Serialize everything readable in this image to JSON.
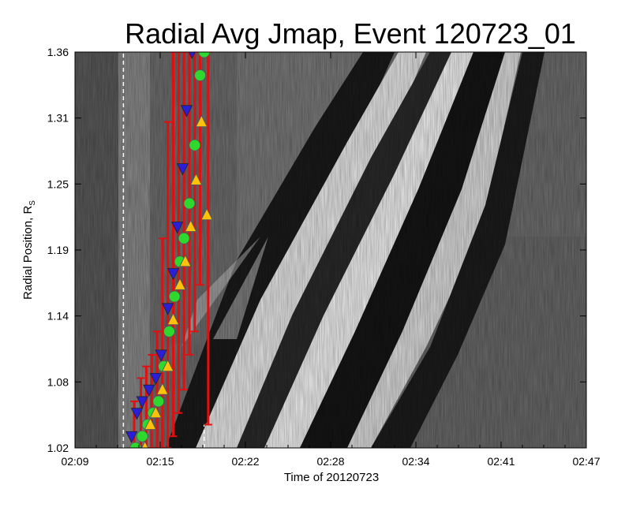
{
  "chart_data": {
    "type": "scatter",
    "title": "Radial Avg Jmap, Event 120723_01",
    "xlabel": "Time of 20120723",
    "ylabel": "Radial Position, R",
    "ylabel_sub": "S",
    "x_ticks": [
      "02:09",
      "02:15",
      "02:22",
      "02:28",
      "02:34",
      "02:41",
      "02:47"
    ],
    "y_ticks": [
      "1.02",
      "1.08",
      "1.14",
      "1.19",
      "1.25",
      "1.31",
      "1.36"
    ],
    "xlim": [
      0,
      38
    ],
    "ylim": [
      1.02,
      1.36
    ],
    "background": "grayscale intensity j-map image",
    "vertical_markers": [
      {
        "x": 3.6,
        "style": "dashed",
        "color": "#ffffff"
      },
      {
        "x": 9.6,
        "style": "dashed",
        "color": "#ffffff",
        "ymax": 1.04
      }
    ],
    "colors": {
      "error_bar": "#e01010",
      "triangle_down": "#2a1fd6",
      "circle": "#2ed82e",
      "triangle_up": "#ffc20a"
    },
    "series": [
      {
        "marker": "triangle-down",
        "color": "#2a1fd6",
        "points": [
          [
            4.2,
            1.03
          ],
          [
            4.6,
            1.05
          ],
          [
            5.0,
            1.06
          ],
          [
            5.5,
            1.07
          ],
          [
            6.0,
            1.08
          ],
          [
            6.4,
            1.1
          ],
          [
            6.9,
            1.14
          ],
          [
            7.3,
            1.17
          ],
          [
            7.6,
            1.21
          ],
          [
            8.0,
            1.26
          ],
          [
            8.3,
            1.31
          ],
          [
            8.7,
            1.36
          ]
        ]
      },
      {
        "marker": "circle",
        "color": "#2ed82e",
        "points": [
          [
            4.5,
            1.02
          ],
          [
            5.0,
            1.03
          ],
          [
            5.4,
            1.04
          ],
          [
            5.8,
            1.05
          ],
          [
            6.2,
            1.06
          ],
          [
            6.6,
            1.09
          ],
          [
            7.0,
            1.12
          ],
          [
            7.4,
            1.15
          ],
          [
            7.8,
            1.18
          ],
          [
            8.1,
            1.2
          ],
          [
            8.5,
            1.23
          ],
          [
            8.9,
            1.28
          ],
          [
            9.3,
            1.34
          ],
          [
            9.6,
            1.36
          ]
        ]
      },
      {
        "marker": "triangle-up",
        "color": "#ffc20a",
        "points": [
          [
            5.2,
            1.02
          ],
          [
            5.6,
            1.04
          ],
          [
            6.0,
            1.05
          ],
          [
            6.5,
            1.07
          ],
          [
            6.9,
            1.09
          ],
          [
            7.3,
            1.13
          ],
          [
            7.8,
            1.16
          ],
          [
            8.2,
            1.18
          ],
          [
            8.6,
            1.21
          ],
          [
            9.0,
            1.25
          ],
          [
            9.4,
            1.3
          ],
          [
            9.8,
            1.22
          ]
        ]
      }
    ],
    "error_bars": [
      {
        "x": 4.4,
        "lo": 1.02,
        "hi": 1.06
      },
      {
        "x": 4.9,
        "lo": 1.02,
        "hi": 1.08
      },
      {
        "x": 5.3,
        "lo": 1.02,
        "hi": 1.09
      },
      {
        "x": 5.7,
        "lo": 1.02,
        "hi": 1.1
      },
      {
        "x": 6.1,
        "lo": 1.02,
        "hi": 1.12
      },
      {
        "x": 6.5,
        "lo": 1.02,
        "hi": 1.2
      },
      {
        "x": 6.9,
        "lo": 1.02,
        "hi": 1.3
      },
      {
        "x": 7.3,
        "lo": 1.03,
        "hi": 1.36
      },
      {
        "x": 7.7,
        "lo": 1.05,
        "hi": 1.36
      },
      {
        "x": 8.1,
        "lo": 1.07,
        "hi": 1.36
      },
      {
        "x": 8.5,
        "lo": 1.1,
        "hi": 1.36
      },
      {
        "x": 8.9,
        "lo": 1.12,
        "hi": 1.36
      },
      {
        "x": 9.3,
        "lo": 1.16,
        "hi": 1.36
      },
      {
        "x": 9.9,
        "lo": 1.04,
        "hi": 1.36
      }
    ]
  }
}
